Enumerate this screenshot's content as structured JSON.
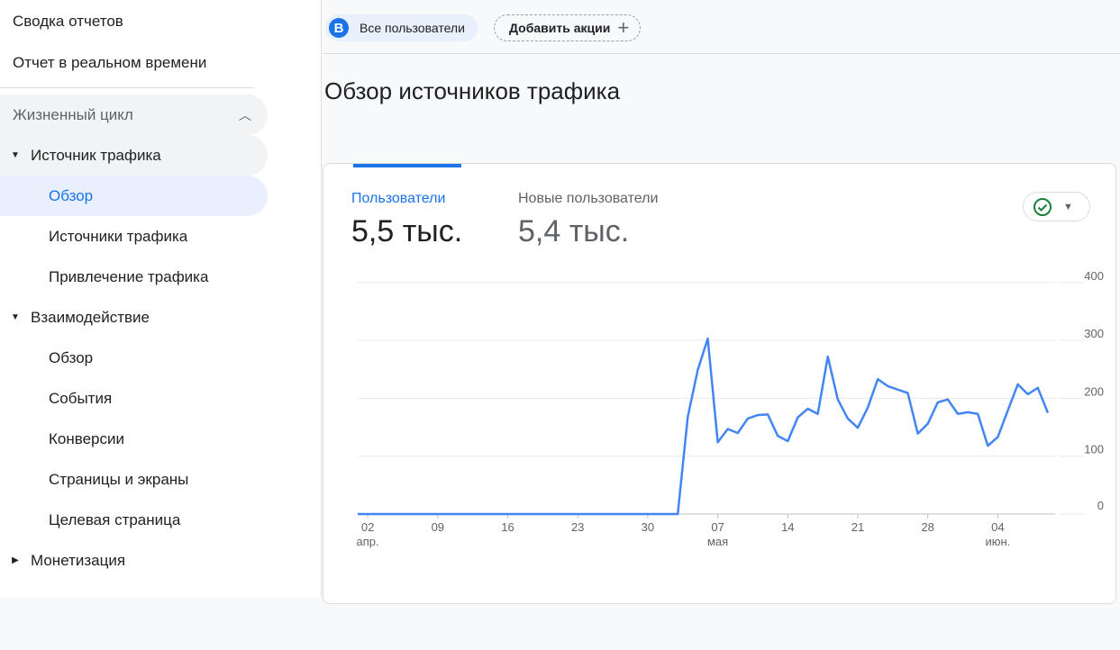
{
  "sidebar": {
    "top": [
      "Сводка отчетов",
      "Отчет в реальном времени"
    ],
    "lifecycle": "Жизненный цикл",
    "items": [
      {
        "label": "Источник трафика",
        "level": 1,
        "arrow": "expanded"
      },
      {
        "label": "Обзор",
        "level": 2,
        "selected": true
      },
      {
        "label": "Источники трафика",
        "level": 2
      },
      {
        "label": "Привлечение трафика",
        "level": 2
      },
      {
        "label": "Взаимодействие",
        "level": 1,
        "arrow": "expanded"
      },
      {
        "label": "Обзор",
        "level": 2
      },
      {
        "label": "События",
        "level": 2
      },
      {
        "label": "Конверсии",
        "level": 2
      },
      {
        "label": "Страницы и экраны",
        "level": 2
      },
      {
        "label": "Целевая страница",
        "level": 2
      },
      {
        "label": "Монетизация",
        "level": 1,
        "arrow": "collapsed"
      }
    ]
  },
  "header": {
    "segment_letter": "B",
    "segment": "Все пользователи",
    "add_label": "Добавить акции"
  },
  "title": "Обзор источников трафика",
  "metrics": [
    {
      "label": "Пользователи",
      "value": "5,5 тыс."
    },
    {
      "label": "Новые пользователи",
      "value": "5,4 тыс."
    }
  ],
  "colors": {
    "accent": "#1a73e8",
    "line": "#4285f4",
    "check": "#188038"
  },
  "chart_data": {
    "type": "line",
    "ylim": [
      0,
      400
    ],
    "yticks": [
      "0",
      "100",
      "200",
      "300",
      "400"
    ],
    "xticks": [
      {
        "label": "02",
        "sub": "апр.",
        "date": "2024-04-02"
      },
      {
        "label": "09",
        "date": "2024-04-09"
      },
      {
        "label": "16",
        "date": "2024-04-16"
      },
      {
        "label": "23",
        "date": "2024-04-23"
      },
      {
        "label": "30",
        "date": "2024-04-30"
      },
      {
        "label": "07",
        "sub": "мая",
        "date": "2024-05-07"
      },
      {
        "label": "14",
        "date": "2024-05-14"
      },
      {
        "label": "21",
        "date": "2024-05-21"
      },
      {
        "label": "28",
        "date": "2024-05-28"
      },
      {
        "label": "04",
        "sub": "июн.",
        "date": "2024-06-04"
      }
    ],
    "x_start": "2024-04-01",
    "values": [
      0,
      0,
      0,
      0,
      0,
      0,
      0,
      0,
      0,
      0,
      0,
      0,
      0,
      0,
      0,
      0,
      0,
      0,
      0,
      0,
      0,
      0,
      0,
      0,
      0,
      0,
      0,
      0,
      0,
      0,
      0,
      0,
      0,
      168,
      249,
      303,
      124,
      147,
      140,
      165,
      171,
      172,
      135,
      126,
      167,
      182,
      173,
      272,
      198,
      165,
      149,
      184,
      233,
      221,
      215,
      209,
      139,
      156,
      193,
      198,
      173,
      176,
      173,
      118,
      133,
      179,
      224,
      207,
      218,
      175
    ]
  }
}
